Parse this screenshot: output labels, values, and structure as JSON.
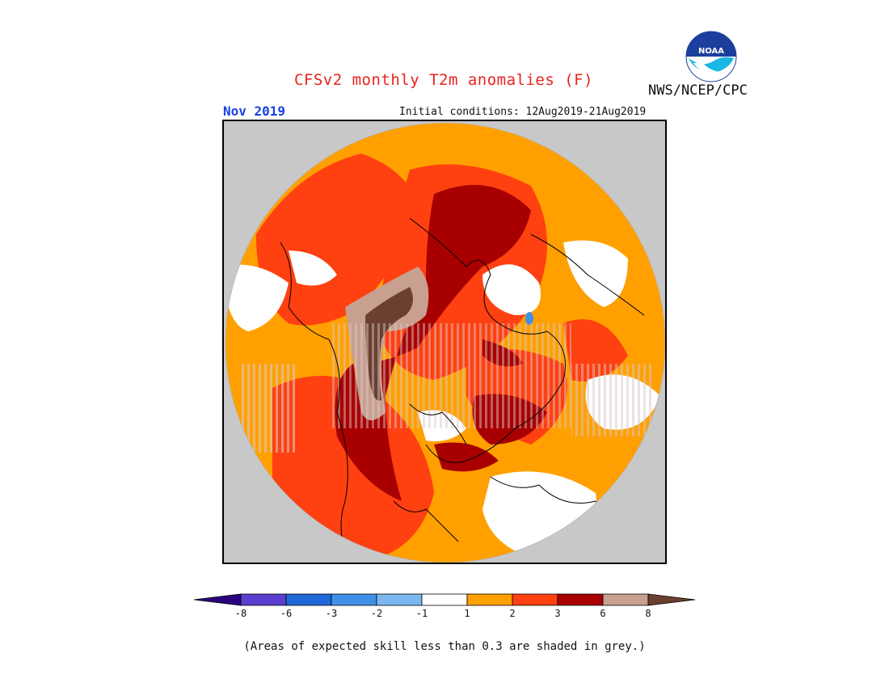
{
  "header": {
    "title": "CFSv2 monthly T2m anomalies (F)",
    "month": "Nov 2019",
    "initial_conditions": "Initial conditions: 12Aug2019-21Aug2019",
    "agency": "NWS/NCEP/CPC",
    "logo_text": "NOAA"
  },
  "colorbar": {
    "ticks": [
      "-8",
      "-6",
      "-3",
      "-2",
      "-1",
      "1",
      "2",
      "3",
      "6",
      "8"
    ],
    "colors": [
      "#2a0080",
      "#5a3fd0",
      "#1f68d8",
      "#4090e8",
      "#7cb8f0",
      "#ffffff",
      "#ffa000",
      "#ff4010",
      "#a80000",
      "#c8a090",
      "#6b4030"
    ]
  },
  "colors": {
    "skill_mask": "#c8c8c8",
    "title": "#e8231f",
    "month": "#1a40e6"
  },
  "footer": {
    "note": "(Areas of expected skill less than 0.3 are shaded in grey.)"
  }
}
